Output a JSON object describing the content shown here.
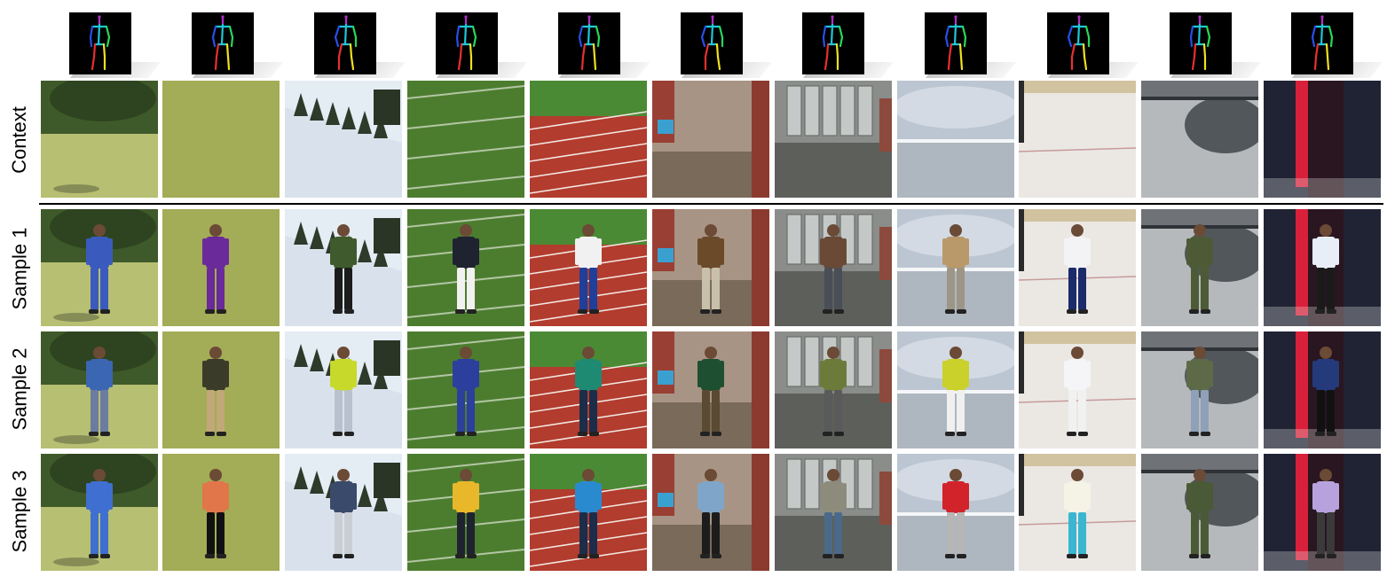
{
  "row_labels": {
    "context": "Context",
    "sample1": "Sample 1",
    "sample2": "Sample 2",
    "sample3": "Sample 3"
  },
  "columns": [
    {
      "scene": "park-lawn",
      "sky": "#4d6a38",
      "ground": "#b7bf72",
      "pose_lean": 0
    },
    {
      "scene": "grass-field",
      "sky": "#a9b25f",
      "ground": "#9aa64e",
      "pose_lean": -2
    },
    {
      "scene": "snow-slope",
      "sky": "#e4ecf4",
      "ground": "#d9e2ec",
      "pose_lean": 0
    },
    {
      "scene": "football-field",
      "sky": "#3d6b25",
      "ground": "#4c7d2f",
      "pose_lean": 1
    },
    {
      "scene": "running-track",
      "sky": "#4b8a34",
      "ground": "#b23c2e",
      "pose_lean": 0
    },
    {
      "scene": "brick-construction",
      "sky": "#9c8a7a",
      "ground": "#8e7c6a",
      "pose_lean": 0
    },
    {
      "scene": "building-doorway",
      "sky": "#9fa3a1",
      "ground": "#5d5f5b",
      "pose_lean": 0
    },
    {
      "scene": "cloudy-sky",
      "sky": "#bcc6d2",
      "ground": "#aeb6bf",
      "pose_lean": 0
    },
    {
      "scene": "ice-rink",
      "sky": "#d8d4cc",
      "ground": "#ebe8e4",
      "pose_lean": 0
    },
    {
      "scene": "helicopter-tarmac",
      "sky": "#8e9296",
      "ground": "#b6b9bb",
      "pose_lean": 0
    },
    {
      "scene": "stage-curtain",
      "sky": "#1f2334",
      "ground": "#3a3f55",
      "pose_lean": 0
    }
  ],
  "rows": [
    {
      "key": "context",
      "person": false
    },
    {
      "key": "sample1",
      "person": true,
      "shirts": [
        "#3a5bbd",
        "#6a2a9a",
        "#3f5a2c",
        "#1f2330",
        "#f1f1f1",
        "#6b4a2a",
        "#6a4a36",
        "#b9996a",
        "#f3f3f5",
        "#4d5a36",
        "#e8eef8"
      ],
      "pants": [
        "#3a5bbd",
        "#6a2a9a",
        "#1c1c1c",
        "#f1f1f1",
        "#1f3f9a",
        "#c9c0aa",
        "#4a4e56",
        "#9d9586",
        "#1c2b6b",
        "#4d5a36",
        "#1a1a1a"
      ]
    },
    {
      "key": "sample2",
      "person": true,
      "shirts": [
        "#3a66b2",
        "#3b3b2a",
        "#c7d92a",
        "#2c3f9c",
        "#1f8a72",
        "#1e4f30",
        "#6c7a3a",
        "#c9d12a",
        "#f5f5f7",
        "#5d6a48",
        "#243a7a"
      ],
      "pants": [
        "#6c7ba0",
        "#c1a878",
        "#b9c1cf",
        "#2c3f9c",
        "#1c2d4a",
        "#5a4a32",
        "#5a5a5a",
        "#f0f0f0",
        "#f1f1f1",
        "#8fa0b8",
        "#111111"
      ]
    },
    {
      "key": "sample3",
      "person": true,
      "shirts": [
        "#3f6fd0",
        "#e0764a",
        "#3a4a6a",
        "#e8b82a",
        "#2a8ad0",
        "#7fa6c8",
        "#8d8c7c",
        "#d2232b",
        "#f5f2e6",
        "#4b5a36",
        "#b8a2de"
      ],
      "pants": [
        "#3f6fd0",
        "#111111",
        "#c9ced4",
        "#1f2330",
        "#1c2d4a",
        "#1c1c1c",
        "#4b6a8a",
        "#b6b6b6",
        "#3bb6d0",
        "#4b5a36",
        "#3a3a3a"
      ]
    }
  ],
  "pose_colors": {
    "head": "#b030c8",
    "torso": "#1ec8d8",
    "arm_left": "#2850e8",
    "arm_right": "#28d85a",
    "leg_left": "#e83030",
    "leg_right": "#f0e020"
  }
}
